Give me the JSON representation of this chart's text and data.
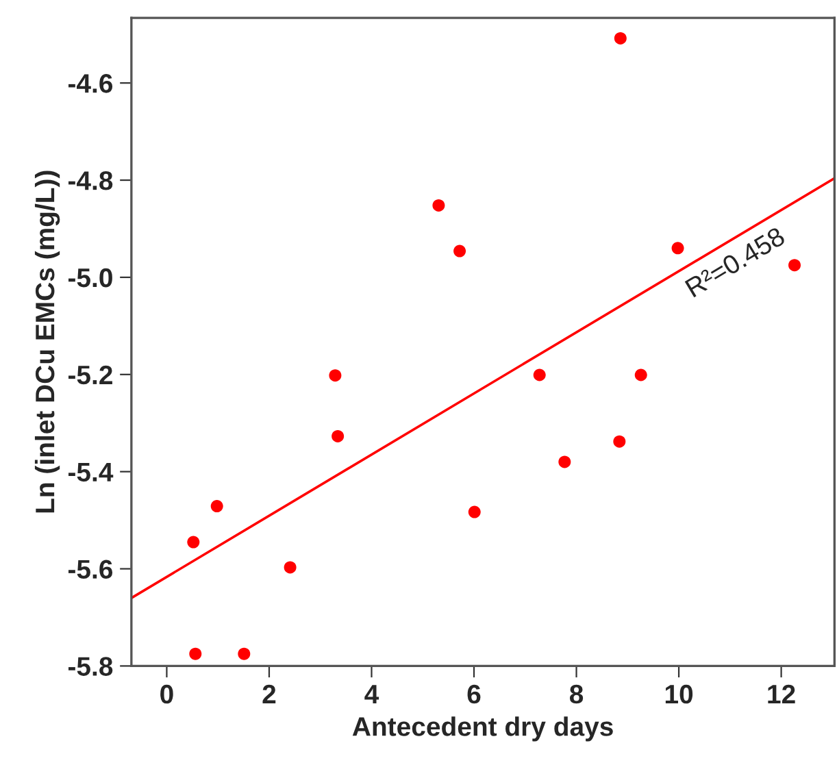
{
  "chart_data": {
    "type": "scatter",
    "xlabel": "Antecedent dry days",
    "ylabel": "Ln (inlet DCu EMCs (mg/L))",
    "xlim": [
      -0.69,
      13.04
    ],
    "ylim": [
      -5.8,
      -4.466
    ],
    "xticks": [
      0,
      2,
      4,
      6,
      8,
      10,
      12
    ],
    "yticks": [
      {
        "value": -5.8,
        "label": "-5.8"
      },
      {
        "value": -5.6,
        "label": "-5.6"
      },
      {
        "value": -5.4,
        "label": "-5.4"
      },
      {
        "value": -5.2,
        "label": "-5.2"
      },
      {
        "value": -5.0,
        "label": "-5.0"
      },
      {
        "value": -4.8,
        "label": "-4.8"
      },
      {
        "value": -4.6,
        "label": "-4.6"
      }
    ],
    "grid": false,
    "series": [
      {
        "marker": "circle",
        "color": "#ff0000",
        "x": [
          0.52,
          0.56,
          0.98,
          1.51,
          2.41,
          3.29,
          3.34,
          5.31,
          5.72,
          6.01,
          7.28,
          7.77,
          8.84,
          8.86,
          9.26,
          9.98,
          12.26
        ],
        "values": [
          -5.545,
          -5.775,
          -5.471,
          -5.775,
          -5.597,
          -5.202,
          -5.327,
          -4.852,
          -4.946,
          -5.483,
          -5.201,
          -5.38,
          -5.338,
          -4.508,
          -5.201,
          -4.94,
          -4.975
        ]
      },
      {
        "type": "line",
        "color": "#ff0000",
        "x": [
          -0.69,
          13.04
        ],
        "values": [
          -5.66,
          -4.796
        ]
      }
    ],
    "annotations": [
      "R²=0.458"
    ]
  }
}
